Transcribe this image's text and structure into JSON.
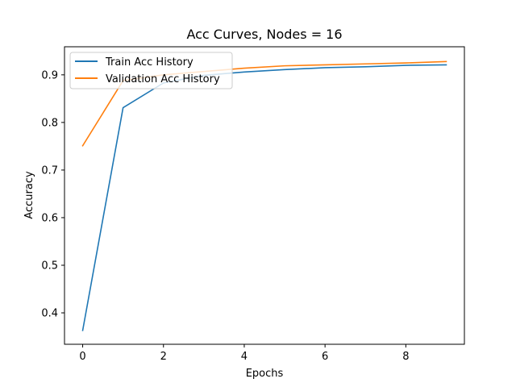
{
  "chart_data": {
    "type": "line",
    "title": "Acc Curves, Nodes = 16",
    "xlabel": "Epochs",
    "ylabel": "Accuracy",
    "x": [
      0,
      1,
      2,
      3,
      4,
      5,
      6,
      7,
      8,
      9
    ],
    "xlim": [
      -0.45,
      9.45
    ],
    "ylim": [
      0.334,
      0.959
    ],
    "xticks": [
      0,
      2,
      4,
      6,
      8
    ],
    "xtick_labels": [
      "0",
      "2",
      "4",
      "6",
      "8"
    ],
    "yticks": [
      0.4,
      0.5,
      0.6,
      0.7,
      0.8,
      0.9
    ],
    "ytick_labels": [
      "0.4",
      "0.5",
      "0.6",
      "0.7",
      "0.8",
      "0.9"
    ],
    "grid": false,
    "legend_position": "upper-left",
    "series": [
      {
        "name": "Train Acc History",
        "color": "#1f77b4",
        "values": [
          0.363,
          0.831,
          0.883,
          0.899,
          0.906,
          0.911,
          0.915,
          0.917,
          0.92,
          0.921
        ]
      },
      {
        "name": "Validation Acc History",
        "color": "#ff7f0e",
        "values": [
          0.751,
          0.888,
          0.9,
          0.907,
          0.914,
          0.919,
          0.921,
          0.923,
          0.925,
          0.928
        ]
      }
    ]
  }
}
